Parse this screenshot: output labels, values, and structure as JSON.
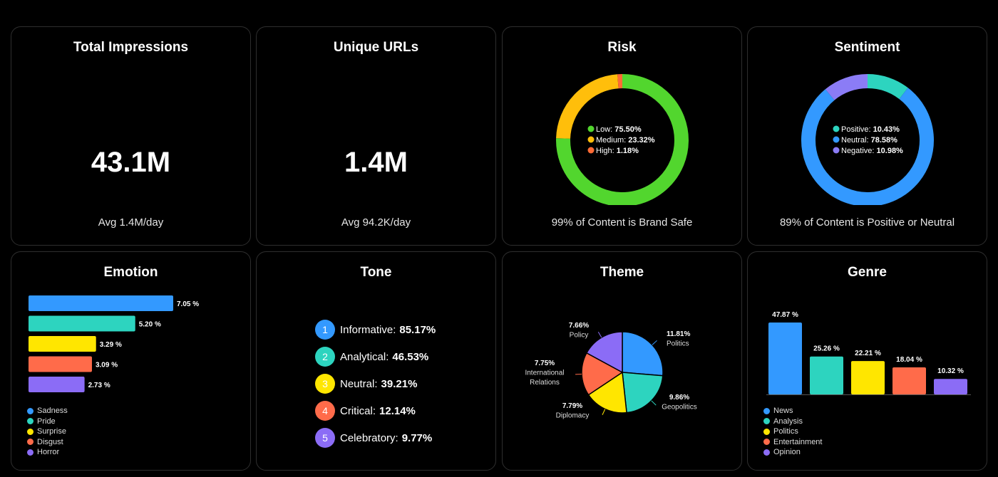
{
  "cards": {
    "impressions": {
      "title": "Total Impressions",
      "value": "43.1M",
      "sub": "Avg 1.4M/day"
    },
    "urls": {
      "title": "Unique URLs",
      "value": "1.4M",
      "sub": "Avg 94.2K/day"
    },
    "risk": {
      "title": "Risk",
      "sub": "99% of Content is Brand Safe"
    },
    "sentiment": {
      "title": "Sentiment",
      "sub": "89% of Content is Positive or Neutral"
    },
    "emotion": {
      "title": "Emotion"
    },
    "tone": {
      "title": "Tone"
    },
    "theme": {
      "title": "Theme"
    },
    "genre": {
      "title": "Genre"
    }
  },
  "chart_data": [
    {
      "id": "risk",
      "type": "pie",
      "donut": true,
      "labels": [
        "Low",
        "Medium",
        "High"
      ],
      "values": [
        75.5,
        23.32,
        1.18
      ],
      "value_labels": [
        "75.50%",
        "23.32%",
        "1.18%"
      ],
      "colors": [
        "#52d62e",
        "#ffbe0b",
        "#ff6b35"
      ]
    },
    {
      "id": "sentiment",
      "type": "pie",
      "donut": true,
      "labels": [
        "Positive",
        "Neutral",
        "Negative"
      ],
      "values": [
        10.43,
        78.58,
        10.98
      ],
      "value_labels": [
        "10.43%",
        "78.58%",
        "10.98%"
      ],
      "colors": [
        "#2dd4bf",
        "#3399ff",
        "#8b7cf6"
      ]
    },
    {
      "id": "emotion",
      "type": "bar",
      "orientation": "horizontal",
      "categories": [
        "Sadness",
        "Pride",
        "Surprise",
        "Disgust",
        "Horror"
      ],
      "values": [
        7.05,
        5.2,
        3.29,
        3.09,
        2.73
      ],
      "value_labels": [
        "7.05 %",
        "5.20 %",
        "3.29 %",
        "3.09 %",
        "2.73 %"
      ],
      "colors": [
        "#3399ff",
        "#2dd4bf",
        "#ffe600",
        "#ff6b4a",
        "#8b6cf6"
      ],
      "legend": "bottom-left"
    },
    {
      "id": "tone",
      "type": "table",
      "rows": [
        {
          "rank": "1",
          "label": "Informative:",
          "value": "85.17%",
          "color": "#3399ff"
        },
        {
          "rank": "2",
          "label": "Analytical:",
          "value": "46.53%",
          "color": "#2dd4bf"
        },
        {
          "rank": "3",
          "label": "Neutral:",
          "value": "39.21%",
          "color": "#ffe600"
        },
        {
          "rank": "4",
          "label": "Critical:",
          "value": "12.14%",
          "color": "#ff6b4a"
        },
        {
          "rank": "5",
          "label": "Celebratory:",
          "value": "9.77%",
          "color": "#8b6cf6"
        }
      ]
    },
    {
      "id": "theme",
      "type": "pie",
      "labels": [
        "Politics",
        "Geopolitics",
        "Diplomacy",
        "International Relations",
        "Policy"
      ],
      "values": [
        11.81,
        9.86,
        7.79,
        7.75,
        7.66
      ],
      "value_labels": [
        "11.81%",
        "9.86%",
        "7.79%",
        "7.75%",
        "7.66%"
      ],
      "colors": [
        "#3399ff",
        "#2dd4bf",
        "#ffe600",
        "#ff6b4a",
        "#8b6cf6"
      ]
    },
    {
      "id": "genre",
      "type": "bar",
      "orientation": "vertical",
      "categories": [
        "News",
        "Analysis",
        "Politics",
        "Entertainment",
        "Opinion"
      ],
      "values": [
        47.87,
        25.26,
        22.21,
        18.04,
        10.32
      ],
      "value_labels": [
        "47.87 %",
        "25.26 %",
        "22.21 %",
        "18.04 %",
        "10.32 %"
      ],
      "colors": [
        "#3399ff",
        "#2dd4bf",
        "#ffe600",
        "#ff6b4a",
        "#8b6cf6"
      ],
      "legend": "bottom-left"
    }
  ]
}
